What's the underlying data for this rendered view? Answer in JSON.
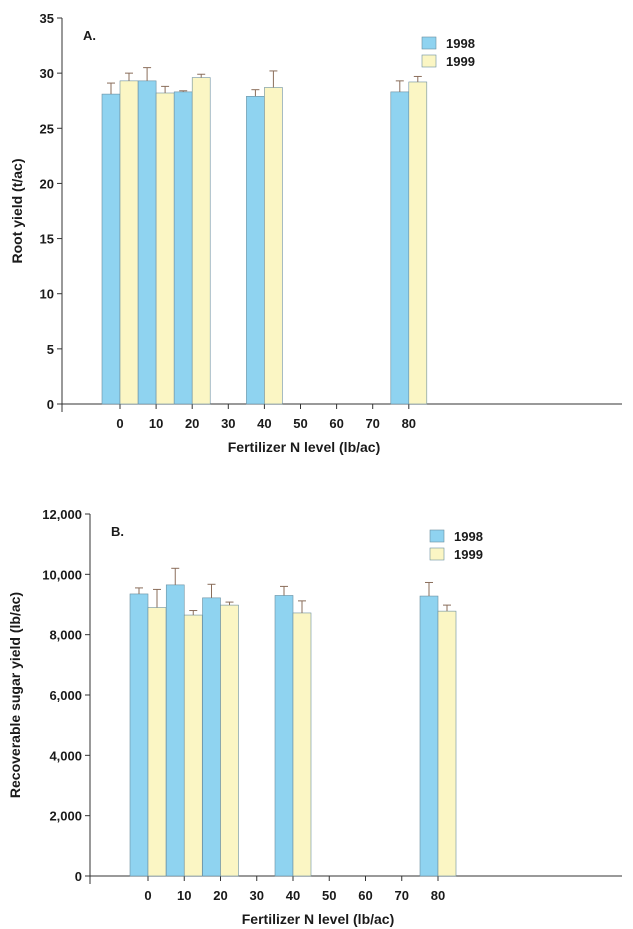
{
  "chart_data": [
    {
      "type": "bar",
      "panel_label": "A.",
      "categories": [
        "0",
        "10",
        "20",
        "30",
        "40",
        "50",
        "60",
        "70",
        "80"
      ],
      "series": [
        {
          "name": "1998",
          "color": "#8fd3f0",
          "values": [
            28.1,
            29.3,
            28.3,
            null,
            27.9,
            null,
            null,
            null,
            28.3
          ],
          "errors": [
            1.0,
            1.2,
            0.1,
            null,
            0.6,
            null,
            null,
            null,
            1.0
          ]
        },
        {
          "name": "1999",
          "color": "#fbf6c4",
          "values": [
            29.3,
            28.2,
            29.6,
            null,
            28.7,
            null,
            null,
            null,
            29.2
          ],
          "errors": [
            0.7,
            0.6,
            0.3,
            null,
            1.5,
            null,
            null,
            null,
            0.5
          ]
        }
      ],
      "xlabel": "Fertilizer N level (lb/ac)",
      "ylabel": "Root yield (t/ac)",
      "ylim": [
        0,
        35
      ],
      "yticks": [
        0,
        5,
        10,
        15,
        20,
        25,
        30,
        35
      ],
      "ytick_labels": [
        "0",
        "5",
        "10",
        "15",
        "20",
        "25",
        "30",
        "35"
      ],
      "legend_position": "top-right",
      "grid": false
    },
    {
      "type": "bar",
      "panel_label": "B.",
      "categories": [
        "0",
        "10",
        "20",
        "30",
        "40",
        "50",
        "60",
        "70",
        "80"
      ],
      "series": [
        {
          "name": "1998",
          "color": "#8fd3f0",
          "values": [
            9350,
            9650,
            9220,
            null,
            9300,
            null,
            null,
            null,
            9280
          ],
          "errors": [
            200,
            550,
            450,
            null,
            300,
            null,
            null,
            null,
            450
          ]
        },
        {
          "name": "1999",
          "color": "#fbf6c4",
          "values": [
            8900,
            8650,
            8980,
            null,
            8720,
            null,
            null,
            null,
            8780
          ],
          "errors": [
            600,
            150,
            100,
            null,
            400,
            null,
            null,
            null,
            200
          ]
        }
      ],
      "xlabel": "Fertilizer N level (lb/ac)",
      "ylabel": "Recoverable sugar yield (lb/ac)",
      "ylim": [
        0,
        12000
      ],
      "yticks": [
        0,
        2000,
        4000,
        6000,
        8000,
        10000,
        12000
      ],
      "ytick_labels": [
        "0",
        "2,000",
        "4,000",
        "6,000",
        "8,000",
        "10,000",
        "12,000"
      ],
      "legend_position": "top-right",
      "grid": false
    }
  ]
}
